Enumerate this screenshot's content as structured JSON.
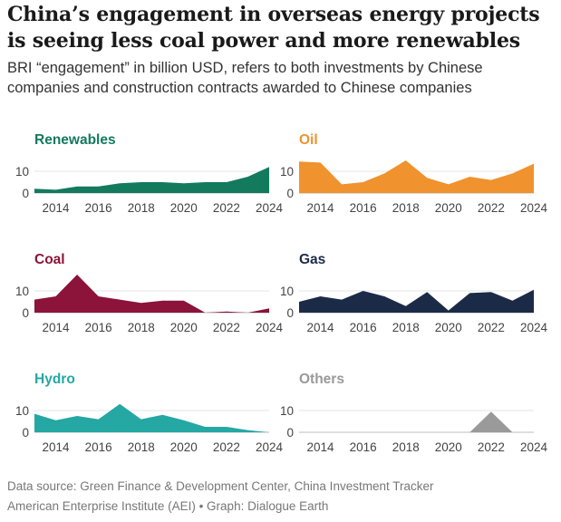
{
  "title": "China’s engagement in overseas energy projects is seeing less coal power and more renewables",
  "subtitle": "BRI “engagement” in billion USD, refers to both investments by Chinese companies and construction contracts awarded to Chinese companies",
  "footer": {
    "line1": "Data source: Green Finance & Development Center, China Investment Tracker",
    "line2": "American Enterprise Institute (AEI) • Graph: Dialogue Earth"
  },
  "chart_data": [
    {
      "type": "area",
      "title": "Renewables",
      "color": "#137a5e",
      "x": [
        2013,
        2014,
        2015,
        2016,
        2017,
        2018,
        2019,
        2020,
        2021,
        2022,
        2023,
        2024
      ],
      "values": [
        2,
        1.5,
        3,
        3,
        4.5,
        5,
        5,
        4.5,
        5,
        5,
        7.5,
        12
      ],
      "yticks": [
        0,
        10
      ],
      "ylim": [
        0,
        15
      ],
      "xticks": [
        2014,
        2016,
        2018,
        2020,
        2022,
        2024
      ]
    },
    {
      "type": "area",
      "title": "Oil",
      "color": "#f0922e",
      "x": [
        2013,
        2014,
        2015,
        2016,
        2017,
        2018,
        2019,
        2020,
        2021,
        2022,
        2023,
        2024
      ],
      "values": [
        14.5,
        14,
        4,
        5,
        9,
        15,
        7,
        4,
        7.5,
        6,
        9,
        13.5
      ],
      "yticks": [
        0,
        10
      ],
      "ylim": [
        0,
        15
      ],
      "xticks": [
        2014,
        2016,
        2018,
        2020,
        2022,
        2024
      ]
    },
    {
      "type": "area",
      "title": "Coal",
      "color": "#8c1339",
      "x": [
        2013,
        2014,
        2015,
        2016,
        2017,
        2018,
        2019,
        2020,
        2021,
        2022,
        2023,
        2024
      ],
      "values": [
        6,
        7.5,
        17.5,
        7.5,
        6,
        4.5,
        5.5,
        5.5,
        0,
        0.5,
        0,
        2
      ],
      "yticks": [
        0,
        10
      ],
      "ylim": [
        0,
        15
      ],
      "xticks": [
        2014,
        2016,
        2018,
        2020,
        2022,
        2024
      ]
    },
    {
      "type": "area",
      "title": "Gas",
      "color": "#1b2b47",
      "x": [
        2013,
        2014,
        2015,
        2016,
        2017,
        2018,
        2019,
        2020,
        2021,
        2022,
        2023,
        2024
      ],
      "values": [
        5,
        7.5,
        6,
        10,
        7.5,
        3,
        9.5,
        1,
        9,
        9.5,
        5.5,
        10.5
      ],
      "yticks": [
        0,
        10
      ],
      "ylim": [
        0,
        15
      ],
      "xticks": [
        2014,
        2016,
        2018,
        2020,
        2022,
        2024
      ]
    },
    {
      "type": "area",
      "title": "Hydro",
      "color": "#25a7a4",
      "x": [
        2013,
        2014,
        2015,
        2016,
        2017,
        2018,
        2019,
        2020,
        2021,
        2022,
        2023,
        2024
      ],
      "values": [
        8.5,
        5.5,
        7.5,
        6,
        13,
        6,
        8,
        5.5,
        2.5,
        2.5,
        1,
        0
      ],
      "yticks": [
        0,
        10
      ],
      "ylim": [
        0,
        15
      ],
      "xticks": [
        2014,
        2016,
        2018,
        2020,
        2022,
        2024
      ]
    },
    {
      "type": "area",
      "title": "Others",
      "color": "#9a9a9a",
      "x": [
        2013,
        2014,
        2015,
        2016,
        2017,
        2018,
        2019,
        2020,
        2021,
        2022,
        2023,
        2024
      ],
      "values": [
        0,
        0,
        0,
        0,
        0,
        0,
        0,
        0,
        0,
        9.5,
        0,
        0
      ],
      "yticks": [
        0,
        10
      ],
      "ylim": [
        0,
        15
      ],
      "xticks": [
        2014,
        2016,
        2018,
        2020,
        2022,
        2024
      ]
    }
  ]
}
